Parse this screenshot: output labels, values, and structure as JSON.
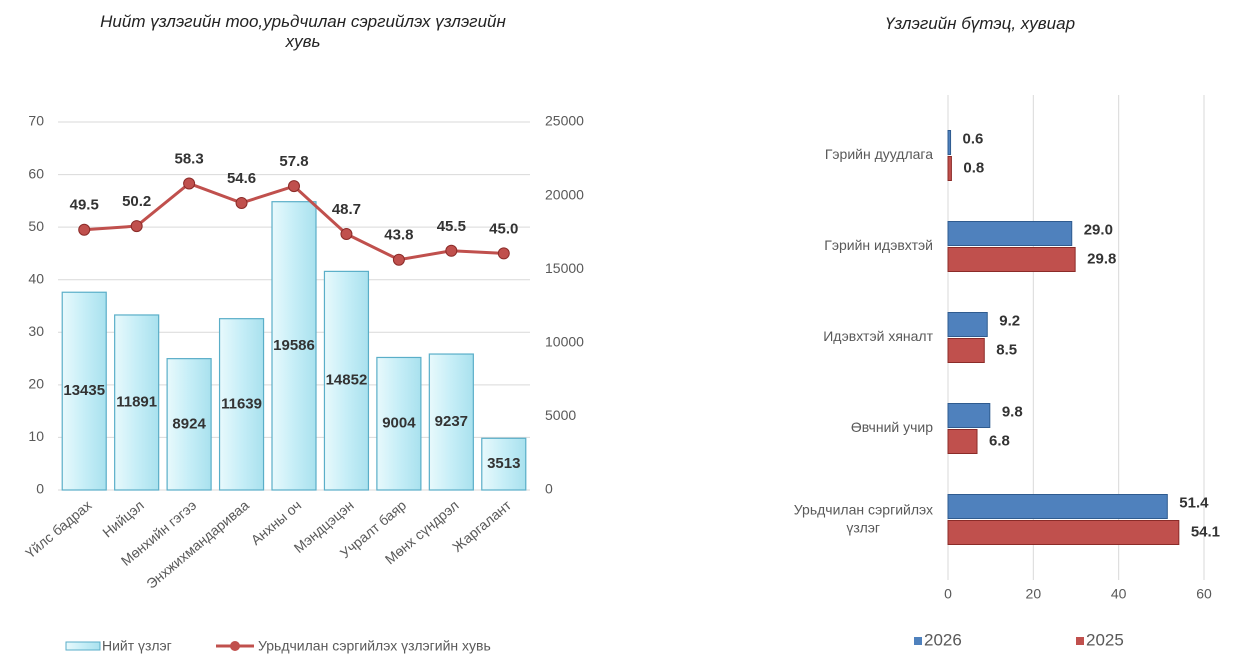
{
  "chart_data": [
    {
      "type": "combo",
      "title": "Нийт  үзлэгийн тоо,урьдчилан сэргийлэх үзлэгийн хувь",
      "categories": [
        "Үйлс бадрах",
        "Нийцэл",
        "Мөнхийн гэгээ",
        "Энхжихмандариваа",
        "Анхны оч",
        "Мэндцэцэн",
        "Учралт баяр",
        "Мөнх сүндрэл",
        "Жаргалант"
      ],
      "series": [
        {
          "name": "Нийт үзлэг",
          "type": "bar",
          "axis": "y2",
          "color": "#c6eef7",
          "values": [
            13435,
            11891,
            8924,
            11639,
            19586,
            14852,
            9004,
            9237,
            3513
          ]
        },
        {
          "name": "Урьдчилан сэргийлэх үзлэгийн хувь",
          "type": "line",
          "color": "#c0504d",
          "values": [
            49.5,
            50.2,
            58.3,
            54.6,
            57.8,
            48.7,
            43.8,
            45.5,
            45.0
          ],
          "value_labels": [
            "49.5",
            "50.2",
            "58.3",
            "54.6",
            "57.8",
            "48.7",
            "43.8",
            "45.5",
            "45.0"
          ]
        }
      ],
      "ylim": [
        0,
        70
      ],
      "yticks": [
        0,
        10,
        20,
        30,
        40,
        50,
        60,
        70
      ],
      "y2lim": [
        0,
        25000
      ],
      "y2ticks": [
        0,
        5000,
        10000,
        15000,
        20000,
        25000
      ],
      "grid": true,
      "legend": "bottom"
    },
    {
      "type": "hbar",
      "title": "Үзлэгийн бүтэц, хувиар",
      "categories": [
        "Гэрийн дуудлага",
        "Гэрийн идэвхтэй",
        "Идэвхтэй хяналт",
        "Өвчний учир",
        "Урьдчилан сэргийлэх үзлэг"
      ],
      "series": [
        {
          "name": "2026",
          "color": "#4f81bd",
          "values": [
            0.6,
            29.0,
            9.2,
            9.8,
            51.4
          ],
          "value_labels": [
            "0.6",
            "29.0",
            "9.2",
            "9.8",
            "51.4"
          ]
        },
        {
          "name": "2025",
          "color": "#c0504d",
          "values": [
            0.8,
            29.8,
            8.5,
            6.8,
            54.1
          ],
          "value_labels": [
            "0.8",
            "29.8",
            "8.5",
            "6.8",
            "54.1"
          ]
        }
      ],
      "xlim": [
        0,
        60
      ],
      "xticks": [
        0,
        20,
        40,
        60
      ],
      "grid": true,
      "legend": "bottom"
    }
  ]
}
